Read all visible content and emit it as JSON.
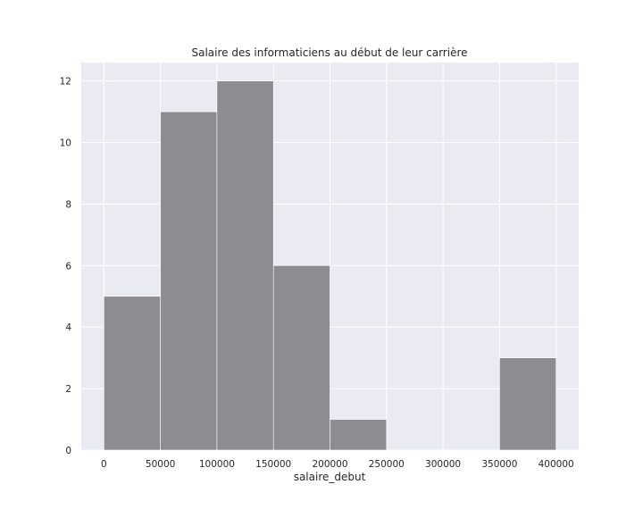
{
  "chart_data": {
    "type": "bar",
    "title": "Salaire des informaticiens au début de leur carrière",
    "xlabel": "salaire_debut",
    "ylabel": "",
    "bins": [
      {
        "start": 0,
        "end": 50000,
        "count": 5
      },
      {
        "start": 50000,
        "end": 100000,
        "count": 11
      },
      {
        "start": 100000,
        "end": 150000,
        "count": 12
      },
      {
        "start": 150000,
        "end": 200000,
        "count": 6
      },
      {
        "start": 200000,
        "end": 250000,
        "count": 1
      },
      {
        "start": 250000,
        "end": 300000,
        "count": 0
      },
      {
        "start": 300000,
        "end": 350000,
        "count": 0
      },
      {
        "start": 350000,
        "end": 400000,
        "count": 3
      }
    ],
    "xlim": [
      -20000,
      420000
    ],
    "ylim": [
      0,
      12.6
    ],
    "xticks": [
      0,
      50000,
      100000,
      150000,
      200000,
      250000,
      300000,
      350000,
      400000
    ],
    "yticks": [
      0,
      2,
      4,
      6,
      8,
      10,
      12
    ],
    "grid": true,
    "colors": {
      "background": "#eaeaf2",
      "bar": "#8d8c90",
      "grid": "#ffffff"
    }
  }
}
